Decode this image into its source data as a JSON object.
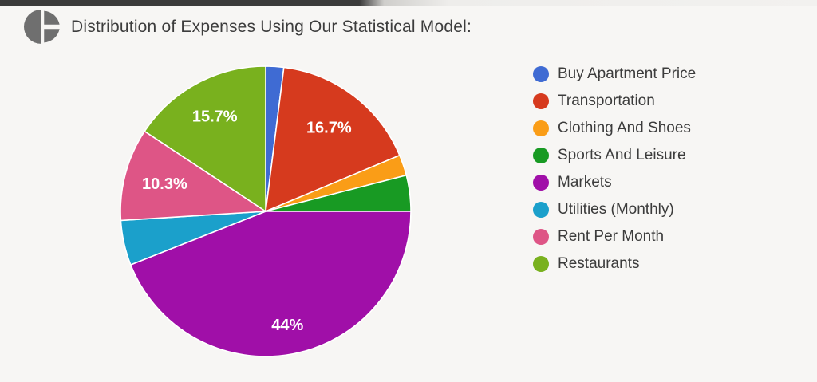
{
  "top_bar": {
    "left_color": "#3b3b3b",
    "right_color": "#f2f1ef"
  },
  "header": {
    "title": "Distribution of Expenses Using Our Statistical Model:",
    "icon": "pie-chart-icon",
    "text_color": "#3d3d3d"
  },
  "chart_data": {
    "type": "pie",
    "title": "Distribution of Expenses Using Our Statistical Model:",
    "categories": [
      "Buy Apartment Price",
      "Transportation",
      "Clothing And Shoes",
      "Sports And Leisure",
      "Markets",
      "Utilities (Monthly)",
      "Rent Per Month",
      "Restaurants"
    ],
    "values": [
      2,
      16.7,
      2.3,
      4,
      44,
      5,
      10.3,
      15.7
    ],
    "slice_labels": [
      "",
      "16.7%",
      "",
      "",
      "44%",
      "",
      "10.3%",
      "15.7%"
    ],
    "colors": [
      "#3F6BD3",
      "#D63A1E",
      "#FA9D17",
      "#189A23",
      "#A00FA8",
      "#1BA0CB",
      "#DE5586",
      "#79B11E"
    ],
    "label_color": "#ffffff",
    "legend_position": "right",
    "start_angle_deg": 0,
    "label_radius_frac": [
      0.72,
      0.72,
      0.72,
      0.72,
      0.8,
      0.72,
      0.72,
      0.74
    ],
    "background": "#f7f6f4"
  }
}
